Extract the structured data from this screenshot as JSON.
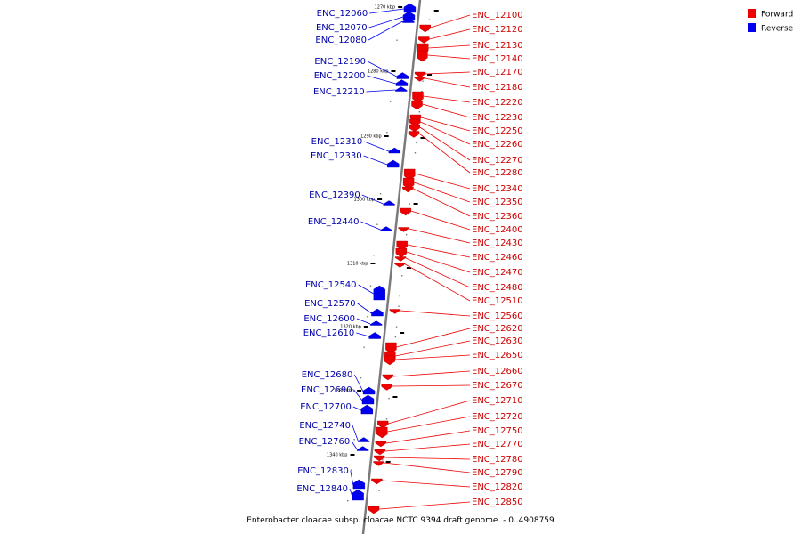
{
  "caption": "Enterobacter cloacae subsp. cloacae NCTC 9394 draft genome. - 0..4908759",
  "legend": [
    {
      "label": "Forward",
      "color": "#ee0000"
    },
    {
      "label": "Reverse",
      "color": "#0000ee"
    }
  ],
  "scale_ticks": [
    {
      "label": "1270 kbp"
    },
    {
      "label": "1280 kbp"
    },
    {
      "label": "1290 kbp"
    },
    {
      "label": "1300 kbp"
    },
    {
      "label": "1310 kbp"
    },
    {
      "label": "1320 kbp"
    },
    {
      "label": "1330 kbp"
    },
    {
      "label": "1340 kbp"
    }
  ],
  "forward_genes": [
    "ENC_12100",
    "ENC_12120",
    "ENC_12130",
    "ENC_12140",
    "ENC_12170",
    "ENC_12180",
    "ENC_12220",
    "ENC_12230",
    "ENC_12250",
    "ENC_12260",
    "ENC_12270",
    "ENC_12280",
    "ENC_12340",
    "ENC_12350",
    "ENC_12360",
    "ENC_12400",
    "ENC_12430",
    "ENC_12460",
    "ENC_12470",
    "ENC_12480",
    "ENC_12510",
    "ENC_12560",
    "ENC_12620",
    "ENC_12630",
    "ENC_12650",
    "ENC_12660",
    "ENC_12670",
    "ENC_12710",
    "ENC_12720",
    "ENC_12750",
    "ENC_12770",
    "ENC_12780",
    "ENC_12790",
    "ENC_12820",
    "ENC_12850"
  ],
  "reverse_genes": [
    "ENC_12060",
    "ENC_12070",
    "ENC_12080",
    "ENC_12190",
    "ENC_12200",
    "ENC_12210",
    "ENC_12310",
    "ENC_12330",
    "ENC_12390",
    "ENC_12440",
    "ENC_12540",
    "ENC_12570",
    "ENC_12600",
    "ENC_12610",
    "ENC_12680",
    "ENC_12690",
    "ENC_12700",
    "ENC_12740",
    "ENC_12760",
    "ENC_12830",
    "ENC_12840"
  ]
}
